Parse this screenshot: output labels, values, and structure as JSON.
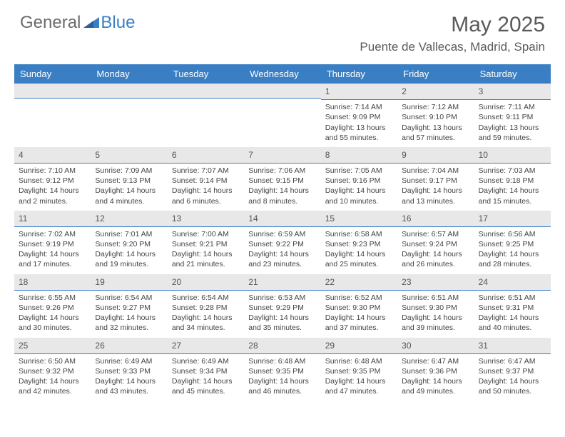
{
  "logo": {
    "general": "General",
    "blue": "Blue"
  },
  "title": "May 2025",
  "location": "Puente de Vallecas, Madrid, Spain",
  "weekdays": [
    "Sunday",
    "Monday",
    "Tuesday",
    "Wednesday",
    "Thursday",
    "Friday",
    "Saturday"
  ],
  "colors": {
    "header_bg": "#3a7fc4",
    "header_text": "#ffffff",
    "daynum_bg": "#e8e8e8",
    "border": "#3a7fc4",
    "text": "#444444"
  },
  "weeks": [
    [
      {
        "n": "",
        "sunrise": "",
        "sunset": "",
        "daylight": ""
      },
      {
        "n": "",
        "sunrise": "",
        "sunset": "",
        "daylight": ""
      },
      {
        "n": "",
        "sunrise": "",
        "sunset": "",
        "daylight": ""
      },
      {
        "n": "",
        "sunrise": "",
        "sunset": "",
        "daylight": ""
      },
      {
        "n": "1",
        "sunrise": "Sunrise: 7:14 AM",
        "sunset": "Sunset: 9:09 PM",
        "daylight": "Daylight: 13 hours and 55 minutes."
      },
      {
        "n": "2",
        "sunrise": "Sunrise: 7:12 AM",
        "sunset": "Sunset: 9:10 PM",
        "daylight": "Daylight: 13 hours and 57 minutes."
      },
      {
        "n": "3",
        "sunrise": "Sunrise: 7:11 AM",
        "sunset": "Sunset: 9:11 PM",
        "daylight": "Daylight: 13 hours and 59 minutes."
      }
    ],
    [
      {
        "n": "4",
        "sunrise": "Sunrise: 7:10 AM",
        "sunset": "Sunset: 9:12 PM",
        "daylight": "Daylight: 14 hours and 2 minutes."
      },
      {
        "n": "5",
        "sunrise": "Sunrise: 7:09 AM",
        "sunset": "Sunset: 9:13 PM",
        "daylight": "Daylight: 14 hours and 4 minutes."
      },
      {
        "n": "6",
        "sunrise": "Sunrise: 7:07 AM",
        "sunset": "Sunset: 9:14 PM",
        "daylight": "Daylight: 14 hours and 6 minutes."
      },
      {
        "n": "7",
        "sunrise": "Sunrise: 7:06 AM",
        "sunset": "Sunset: 9:15 PM",
        "daylight": "Daylight: 14 hours and 8 minutes."
      },
      {
        "n": "8",
        "sunrise": "Sunrise: 7:05 AM",
        "sunset": "Sunset: 9:16 PM",
        "daylight": "Daylight: 14 hours and 10 minutes."
      },
      {
        "n": "9",
        "sunrise": "Sunrise: 7:04 AM",
        "sunset": "Sunset: 9:17 PM",
        "daylight": "Daylight: 14 hours and 13 minutes."
      },
      {
        "n": "10",
        "sunrise": "Sunrise: 7:03 AM",
        "sunset": "Sunset: 9:18 PM",
        "daylight": "Daylight: 14 hours and 15 minutes."
      }
    ],
    [
      {
        "n": "11",
        "sunrise": "Sunrise: 7:02 AM",
        "sunset": "Sunset: 9:19 PM",
        "daylight": "Daylight: 14 hours and 17 minutes."
      },
      {
        "n": "12",
        "sunrise": "Sunrise: 7:01 AM",
        "sunset": "Sunset: 9:20 PM",
        "daylight": "Daylight: 14 hours and 19 minutes."
      },
      {
        "n": "13",
        "sunrise": "Sunrise: 7:00 AM",
        "sunset": "Sunset: 9:21 PM",
        "daylight": "Daylight: 14 hours and 21 minutes."
      },
      {
        "n": "14",
        "sunrise": "Sunrise: 6:59 AM",
        "sunset": "Sunset: 9:22 PM",
        "daylight": "Daylight: 14 hours and 23 minutes."
      },
      {
        "n": "15",
        "sunrise": "Sunrise: 6:58 AM",
        "sunset": "Sunset: 9:23 PM",
        "daylight": "Daylight: 14 hours and 25 minutes."
      },
      {
        "n": "16",
        "sunrise": "Sunrise: 6:57 AM",
        "sunset": "Sunset: 9:24 PM",
        "daylight": "Daylight: 14 hours and 26 minutes."
      },
      {
        "n": "17",
        "sunrise": "Sunrise: 6:56 AM",
        "sunset": "Sunset: 9:25 PM",
        "daylight": "Daylight: 14 hours and 28 minutes."
      }
    ],
    [
      {
        "n": "18",
        "sunrise": "Sunrise: 6:55 AM",
        "sunset": "Sunset: 9:26 PM",
        "daylight": "Daylight: 14 hours and 30 minutes."
      },
      {
        "n": "19",
        "sunrise": "Sunrise: 6:54 AM",
        "sunset": "Sunset: 9:27 PM",
        "daylight": "Daylight: 14 hours and 32 minutes."
      },
      {
        "n": "20",
        "sunrise": "Sunrise: 6:54 AM",
        "sunset": "Sunset: 9:28 PM",
        "daylight": "Daylight: 14 hours and 34 minutes."
      },
      {
        "n": "21",
        "sunrise": "Sunrise: 6:53 AM",
        "sunset": "Sunset: 9:29 PM",
        "daylight": "Daylight: 14 hours and 35 minutes."
      },
      {
        "n": "22",
        "sunrise": "Sunrise: 6:52 AM",
        "sunset": "Sunset: 9:30 PM",
        "daylight": "Daylight: 14 hours and 37 minutes."
      },
      {
        "n": "23",
        "sunrise": "Sunrise: 6:51 AM",
        "sunset": "Sunset: 9:30 PM",
        "daylight": "Daylight: 14 hours and 39 minutes."
      },
      {
        "n": "24",
        "sunrise": "Sunrise: 6:51 AM",
        "sunset": "Sunset: 9:31 PM",
        "daylight": "Daylight: 14 hours and 40 minutes."
      }
    ],
    [
      {
        "n": "25",
        "sunrise": "Sunrise: 6:50 AM",
        "sunset": "Sunset: 9:32 PM",
        "daylight": "Daylight: 14 hours and 42 minutes."
      },
      {
        "n": "26",
        "sunrise": "Sunrise: 6:49 AM",
        "sunset": "Sunset: 9:33 PM",
        "daylight": "Daylight: 14 hours and 43 minutes."
      },
      {
        "n": "27",
        "sunrise": "Sunrise: 6:49 AM",
        "sunset": "Sunset: 9:34 PM",
        "daylight": "Daylight: 14 hours and 45 minutes."
      },
      {
        "n": "28",
        "sunrise": "Sunrise: 6:48 AM",
        "sunset": "Sunset: 9:35 PM",
        "daylight": "Daylight: 14 hours and 46 minutes."
      },
      {
        "n": "29",
        "sunrise": "Sunrise: 6:48 AM",
        "sunset": "Sunset: 9:35 PM",
        "daylight": "Daylight: 14 hours and 47 minutes."
      },
      {
        "n": "30",
        "sunrise": "Sunrise: 6:47 AM",
        "sunset": "Sunset: 9:36 PM",
        "daylight": "Daylight: 14 hours and 49 minutes."
      },
      {
        "n": "31",
        "sunrise": "Sunrise: 6:47 AM",
        "sunset": "Sunset: 9:37 PM",
        "daylight": "Daylight: 14 hours and 50 minutes."
      }
    ]
  ]
}
